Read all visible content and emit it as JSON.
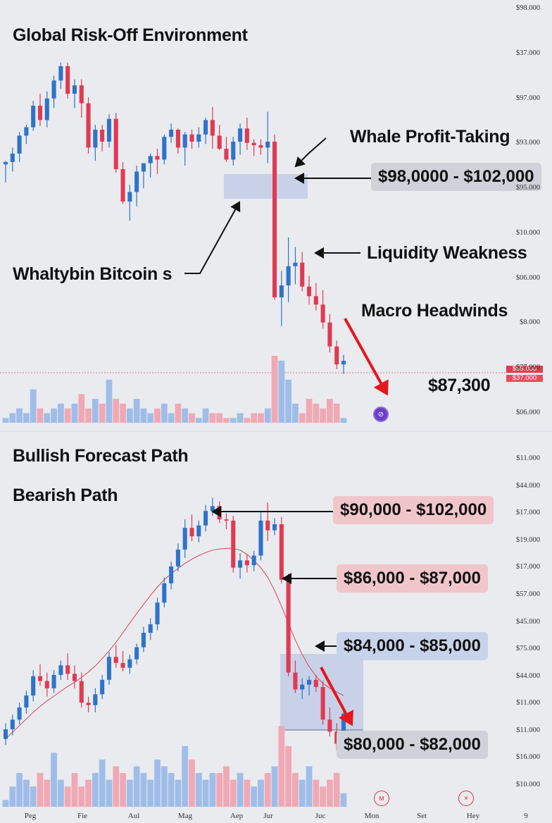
{
  "top": {
    "title": "Global Risk-Off Environment",
    "annotations": {
      "whale_profit": "Whale Profit-Taking",
      "whale_zone": "$98,0000 - $102,000",
      "liquidity": "Liquidity Weakness",
      "macro": "Macro Headwinds",
      "whales": "Whaltybin Bitcoin s",
      "current_price": "$87,300"
    },
    "price_tags": [
      "$95.000",
      "$37.000"
    ],
    "y_ticks": [
      "$98.000",
      "$37.000",
      "$97.000",
      "$93.000",
      "$95.000",
      "$10.000",
      "$06.000",
      "$8.000",
      "$77.000",
      "$06.000"
    ]
  },
  "bottom": {
    "bullish_label": "Bullish Forecast Path",
    "bearish_label": "Bearish Path",
    "zones": [
      "$90,000 - $102,000",
      "$86,000 - $87,000",
      "$84,000 - $85,000",
      "$80,000 - $82,000"
    ],
    "y_ticks": [
      "$11.000",
      "$44.000",
      "$17.000",
      "$19.000",
      "$17.000",
      "$57.000",
      "$45.000",
      "$75.000",
      "$44.000",
      "$11.000",
      "$11.000",
      "$16.000",
      "$10.000"
    ]
  },
  "x_axis": [
    "Peg",
    "Fie",
    "Aul",
    "Mag",
    "Aep",
    "Jur",
    "Juc",
    "Mon",
    "Set",
    "Hey",
    "9"
  ],
  "colors": {
    "up": "#2f73c9",
    "down": "#e03a52",
    "vol_up": "#9fbde8",
    "vol_down": "#f0a9b4",
    "arrow": "#e6161c",
    "accent": "#6a3fc8"
  },
  "chart_data": [
    {
      "type": "candlestick",
      "title": "Global Risk-Off Environment",
      "ylim": [
        80000,
        110000
      ],
      "ohlc": [
        [
          100100,
          100400,
          98600,
          100300
        ],
        [
          100300,
          101500,
          99500,
          101000
        ],
        [
          101000,
          102800,
          100300,
          102500
        ],
        [
          102500,
          103400,
          101800,
          103200
        ],
        [
          103200,
          105400,
          102900,
          105000
        ],
        [
          105000,
          106000,
          103300,
          103800
        ],
        [
          103800,
          106200,
          103200,
          105600
        ],
        [
          105600,
          107500,
          104800,
          107100
        ],
        [
          107100,
          108600,
          106400,
          108300
        ],
        [
          108300,
          108600,
          105600,
          106000
        ],
        [
          106000,
          107200,
          104800,
          106700
        ],
        [
          106700,
          107200,
          104000,
          105200
        ],
        [
          105200,
          105700,
          101000,
          101500
        ],
        [
          101500,
          103400,
          100400,
          103000
        ],
        [
          103000,
          103400,
          101200,
          102000
        ],
        [
          102000,
          104300,
          101500,
          103900
        ],
        [
          103900,
          104400,
          99400,
          99700
        ],
        [
          99700,
          100300,
          96800,
          97000
        ],
        [
          97000,
          98400,
          95400,
          97800
        ],
        [
          97800,
          100000,
          96600,
          99500
        ],
        [
          99500,
          100200,
          98100,
          100200
        ],
        [
          100200,
          101000,
          99000,
          100800
        ],
        [
          100800,
          101400,
          99300,
          100500
        ],
        [
          100500,
          102600,
          100100,
          102400
        ],
        [
          102400,
          103500,
          101900,
          103000
        ],
        [
          103000,
          103100,
          101000,
          101500
        ],
        [
          101500,
          102800,
          100000,
          102600
        ],
        [
          102600,
          103000,
          101400,
          102000
        ],
        [
          102000,
          103200,
          101500,
          102600
        ],
        [
          102600,
          104000,
          101800,
          103800
        ],
        [
          103800,
          104900,
          101400,
          102500
        ],
        [
          102500,
          103400,
          101300,
          101400
        ],
        [
          101400,
          102400,
          100300,
          100500
        ],
        [
          100500,
          102400,
          100000,
          102000
        ],
        [
          102000,
          103500,
          100900,
          103100
        ],
        [
          103100,
          104000,
          101300,
          101900
        ],
        [
          101900,
          102200,
          100800,
          101700
        ],
        [
          101700,
          102200,
          100900,
          101500
        ],
        [
          101500,
          104500,
          100200,
          102000
        ],
        [
          102000,
          102600,
          88800,
          89000
        ],
        [
          89000,
          91200,
          86600,
          90000
        ],
        [
          90000,
          94000,
          88600,
          91600
        ],
        [
          91600,
          93200,
          90100,
          91900
        ],
        [
          91900,
          92800,
          89500,
          89900
        ],
        [
          89900,
          90800,
          88400,
          89100
        ],
        [
          89100,
          90200,
          87900,
          88400
        ],
        [
          88400,
          89600,
          86400,
          86900
        ],
        [
          86900,
          87600,
          84400,
          84900
        ],
        [
          84900,
          85400,
          83000,
          83400
        ],
        [
          83400,
          84200,
          82600,
          83700
        ]
      ],
      "volume": [
        1,
        2,
        3,
        2,
        7,
        3,
        2,
        3,
        4,
        3,
        4,
        6,
        3,
        5,
        4,
        9,
        5,
        4,
        3,
        5,
        3,
        2,
        3,
        4,
        2,
        4,
        3,
        2,
        1,
        3,
        2,
        2,
        1,
        1,
        2,
        1,
        2,
        2,
        3,
        14,
        13,
        9,
        4,
        2,
        5,
        4,
        3,
        5,
        4,
        1
      ]
    },
    {
      "type": "candlestick",
      "ylim": [
        78000,
        104000
      ],
      "ohlc": [
        [
          81000,
          82300,
          80500,
          81800
        ],
        [
          81800,
          83000,
          81300,
          82600
        ],
        [
          82600,
          84000,
          82200,
          83600
        ],
        [
          83600,
          85000,
          83100,
          84600
        ],
        [
          84600,
          86700,
          84100,
          86200
        ],
        [
          86200,
          87200,
          85400,
          85800
        ],
        [
          85800,
          86500,
          84500,
          85200
        ],
        [
          85200,
          86700,
          84800,
          86300
        ],
        [
          86300,
          87500,
          85900,
          87100
        ],
        [
          87100,
          88100,
          85900,
          86400
        ],
        [
          86400,
          87100,
          85200,
          85800
        ],
        [
          85800,
          86500,
          83600,
          84000
        ],
        [
          84000,
          84500,
          83200,
          83800
        ],
        [
          83800,
          85200,
          83200,
          84700
        ],
        [
          84700,
          86300,
          84300,
          85900
        ],
        [
          85900,
          88200,
          85500,
          87800
        ],
        [
          87800,
          88800,
          86900,
          87300
        ],
        [
          87300,
          88300,
          86600,
          86900
        ],
        [
          86900,
          88000,
          86400,
          87600
        ],
        [
          87600,
          88900,
          87200,
          88600
        ],
        [
          88600,
          90300,
          88200,
          89800
        ],
        [
          89800,
          91000,
          89200,
          90500
        ],
        [
          90500,
          92700,
          90000,
          92300
        ],
        [
          92300,
          94400,
          91900,
          93900
        ],
        [
          93900,
          95700,
          93400,
          95300
        ],
        [
          95300,
          97200,
          94900,
          96700
        ],
        [
          96700,
          99200,
          96000,
          98500
        ],
        [
          98500,
          99600,
          97400,
          97800
        ],
        [
          97800,
          99100,
          97300,
          98700
        ],
        [
          98700,
          100400,
          98200,
          99900
        ],
        [
          99900,
          101000,
          99500,
          100300
        ],
        [
          100300,
          100700,
          98900,
          99200
        ],
        [
          99200,
          99700,
          98400,
          99100
        ],
        [
          99100,
          99500,
          94800,
          95200
        ],
        [
          95200,
          96400,
          94300,
          95800
        ],
        [
          95800,
          96300,
          94800,
          95400
        ],
        [
          95400,
          96600,
          94900,
          96200
        ],
        [
          96200,
          99800,
          95800,
          99100
        ],
        [
          99100,
          100600,
          97400,
          98300
        ],
        [
          98300,
          99300,
          97900,
          98800
        ],
        [
          98800,
          99400,
          93900,
          94200
        ],
        [
          94200,
          94700,
          86200,
          86500
        ],
        [
          86500,
          87500,
          84800,
          85100
        ],
        [
          85100,
          86000,
          84300,
          85500
        ],
        [
          85500,
          86200,
          84600,
          85900
        ],
        [
          85900,
          86300,
          84900,
          85300
        ],
        [
          85300,
          85800,
          82200,
          82600
        ],
        [
          82600,
          83600,
          81200,
          81600
        ],
        [
          81600,
          82300,
          80000,
          80600
        ],
        [
          80600,
          83600,
          80300,
          83100
        ]
      ],
      "ma": [
        81000,
        81550,
        82100,
        82650,
        83200,
        83700,
        84150,
        84550,
        84950,
        85350,
        85700,
        86100,
        86550,
        87050,
        87650,
        88300,
        89000,
        89800,
        90600,
        91400,
        92150,
        92900,
        93600,
        94200,
        94700,
        95150,
        95550,
        95900,
        96200,
        96450,
        96650,
        96750,
        96800,
        96800,
        96650,
        96300,
        95800,
        95200,
        94400,
        93300,
        92000,
        90600,
        89200,
        88000,
        87000,
        86200,
        85600,
        85200,
        84900,
        84600
      ],
      "volume": [
        1,
        3,
        5,
        4,
        3,
        5,
        4,
        8,
        4,
        3,
        5,
        3,
        4,
        5,
        7,
        4,
        6,
        5,
        4,
        6,
        5,
        4,
        7,
        6,
        5,
        4,
        9,
        7,
        5,
        4,
        5,
        5,
        6,
        4,
        5,
        4,
        3,
        4,
        5,
        6,
        12,
        9,
        5,
        4,
        6,
        4,
        3,
        4,
        5,
        2
      ]
    }
  ]
}
